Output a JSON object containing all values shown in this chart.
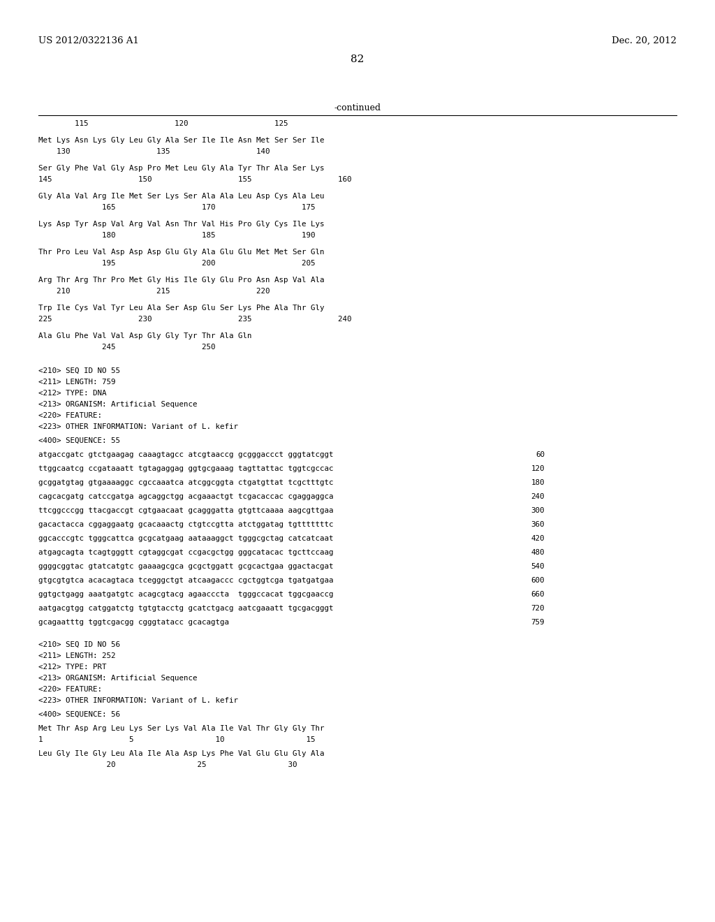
{
  "header_left": "US 2012/0322136 A1",
  "header_right": "Dec. 20, 2012",
  "page_number": "82",
  "continued_label": "-continued",
  "background_color": "#ffffff",
  "text_color": "#000000",
  "numbering_top": "        115                   120                   125",
  "sequence_blocks": [
    {
      "seq": "Met Lys Asn Lys Gly Leu Gly Ala Ser Ile Ile Asn Met Ser Ser Ile",
      "num": "    130                   135                   140"
    },
    {
      "seq": "Ser Gly Phe Val Gly Asp Pro Met Leu Gly Ala Tyr Thr Ala Ser Lys",
      "num": "145                   150                   155                   160"
    },
    {
      "seq": "Gly Ala Val Arg Ile Met Ser Lys Ser Ala Ala Leu Asp Cys Ala Leu",
      "num": "              165                   170                   175"
    },
    {
      "seq": "Lys Asp Tyr Asp Val Arg Val Asn Thr Val His Pro Gly Cys Ile Lys",
      "num": "              180                   185                   190"
    },
    {
      "seq": "Thr Pro Leu Val Asp Asp Asp Glu Gly Ala Glu Glu Met Met Ser Gln",
      "num": "              195                   200                   205"
    },
    {
      "seq": "Arg Thr Arg Thr Pro Met Gly His Ile Gly Glu Pro Asn Asp Val Ala",
      "num": "    210                   215                   220"
    },
    {
      "seq": "Trp Ile Cys Val Tyr Leu Ala Ser Asp Glu Ser Lys Phe Ala Thr Gly",
      "num": "225                   230                   235                   240"
    },
    {
      "seq": "Ala Glu Phe Val Val Asp Gly Gly Tyr Thr Ala Gln",
      "num": "              245                   250"
    }
  ],
  "meta1": [
    "<210> SEQ ID NO 55",
    "<211> LENGTH: 759",
    "<212> TYPE: DNA",
    "<213> ORGANISM: Artificial Sequence",
    "<220> FEATURE:",
    "<223> OTHER INFORMATION: Variant of L. kefir"
  ],
  "seq55_label": "<400> SEQUENCE: 55",
  "dna_lines": [
    {
      "seq": "atgaccgatc gtctgaagag caaagtagcc atcgtaaccg gcgggaccct gggtatcggt",
      "num": "60"
    },
    {
      "seq": "ttggcaatcg ccgataaatt tgtagaggag ggtgcgaaag tagttattac tggtcgccac",
      "num": "120"
    },
    {
      "seq": "gcggatgtag gtgaaaaggc cgccaaatca atcggcggta ctgatgttat tcgctttgtc",
      "num": "180"
    },
    {
      "seq": "cagcacgatg catccgatga agcaggctgg acgaaactgt tcgacaccac cgaggaggca",
      "num": "240"
    },
    {
      "seq": "ttcggcccgg ttacgaccgt cgtgaacaat gcagggatta gtgttcaaaa aagcgttgaa",
      "num": "300"
    },
    {
      "seq": "gacactacca cggaggaatg gcacaaactg ctgtccgtta atctggatag tgtttttttc",
      "num": "360"
    },
    {
      "seq": "ggcacccgtc tgggcattca gcgcatgaag aataaaggct tgggcgctag catcatcaat",
      "num": "420"
    },
    {
      "seq": "atgagcagta tcagtgggtt cgtaggcgat ccgacgctgg gggcatacac tgcttccaag",
      "num": "480"
    },
    {
      "seq": "ggggcggtac gtatcatgtc gaaaagcgca gcgctggatt gcgcactgaa ggactacgat",
      "num": "540"
    },
    {
      "seq": "gtgcgtgtca acacagtaca tcegggctgt atcaagaccc cgctggtcga tgatgatgaa",
      "num": "600"
    },
    {
      "seq": "ggtgctgagg aaatgatgtc acagcgtacg agaacccta  tgggccacat tggcgaaccg",
      "num": "660"
    },
    {
      "seq": "aatgacgtgg catggatctg tgtgtacctg gcatctgacg aatcgaaatt tgcgacgggt",
      "num": "720"
    },
    {
      "seq": "gcagaatttg tggtcgacgg cgggtatacc gcacagtga",
      "num": "759"
    }
  ],
  "meta2": [
    "<210> SEQ ID NO 56",
    "<211> LENGTH: 252",
    "<212> TYPE: PRT",
    "<213> ORGANISM: Artificial Sequence",
    "<220> FEATURE:",
    "<223> OTHER INFORMATION: Variant of L. kefir"
  ],
  "seq56_label": "<400> SEQUENCE: 56",
  "prt_blocks": [
    {
      "seq": "Met Thr Asp Arg Leu Lys Ser Lys Val Ala Ile Val Thr Gly Gly Thr",
      "num": "1                   5                  10                  15"
    },
    {
      "seq": "Leu Gly Ile Gly Leu Ala Ile Ala Asp Lys Phe Val Glu Glu Gly Ala",
      "num": "               20                  25                  30"
    }
  ]
}
